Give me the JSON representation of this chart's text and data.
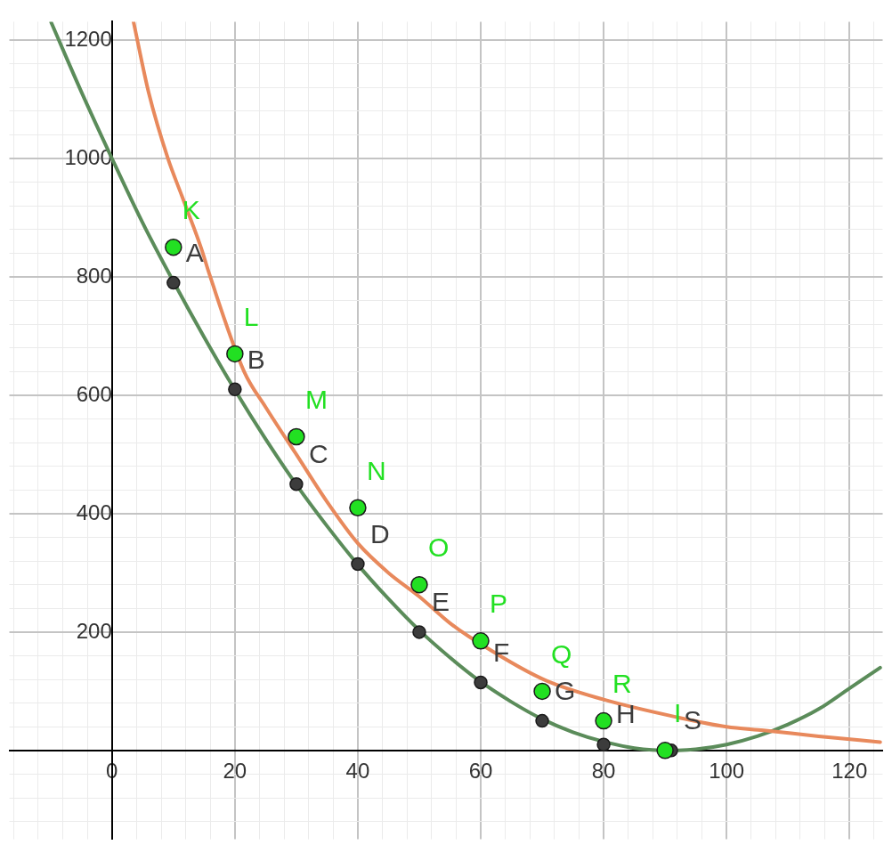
{
  "chart_data": {
    "type": "scatter",
    "marker": "circle",
    "grid": true,
    "xlim": [
      -16.7,
      125.4
    ],
    "ylim": [
      -150,
      1231
    ],
    "xticks": [
      {
        "value": -16,
        "label": null
      },
      {
        "value": -12,
        "label": null
      },
      {
        "value": -8,
        "label": null
      },
      {
        "value": -4,
        "label": null
      },
      {
        "value": 0,
        "label": "0"
      },
      {
        "value": 4,
        "label": null
      },
      {
        "value": 8,
        "label": null
      },
      {
        "value": 12,
        "label": null
      },
      {
        "value": 16,
        "label": null
      },
      20,
      {
        "value": 24,
        "label": null
      },
      {
        "value": 28,
        "label": null
      },
      {
        "value": 32,
        "label": null
      },
      {
        "value": 36,
        "label": null
      },
      40,
      {
        "value": 44,
        "label": null
      },
      {
        "value": 48,
        "label": null
      },
      {
        "value": 52,
        "label": null
      },
      {
        "value": 56,
        "label": null
      },
      60,
      {
        "value": 64,
        "label": null
      },
      {
        "value": 68,
        "label": null
      },
      {
        "value": 72,
        "label": null
      },
      {
        "value": 76,
        "label": null
      },
      80,
      {
        "value": 84,
        "label": null
      },
      {
        "value": 88,
        "label": null
      },
      {
        "value": 92,
        "label": null
      },
      {
        "value": 96,
        "label": null
      },
      100,
      {
        "value": 104,
        "label": null
      },
      {
        "value": 108,
        "label": null
      },
      {
        "value": 112,
        "label": null
      },
      {
        "value": 116,
        "label": null
      },
      120,
      {
        "value": 124,
        "label": null
      }
    ],
    "yticks": [
      {
        "value": -120,
        "label": null
      },
      {
        "value": -80,
        "label": null
      },
      {
        "value": -40,
        "label": null
      },
      {
        "value": 0,
        "label": null
      },
      {
        "value": 40,
        "label": null
      },
      {
        "value": 80,
        "label": null
      },
      {
        "value": 120,
        "label": null
      },
      {
        "value": 160,
        "label": null
      },
      200,
      {
        "value": 240,
        "label": null
      },
      {
        "value": 280,
        "label": null
      },
      {
        "value": 320,
        "label": null
      },
      {
        "value": 360,
        "label": null
      },
      400,
      {
        "value": 440,
        "label": null
      },
      {
        "value": 480,
        "label": null
      },
      {
        "value": 520,
        "label": null
      },
      {
        "value": 560,
        "label": null
      },
      600,
      {
        "value": 640,
        "label": null
      },
      {
        "value": 680,
        "label": null
      },
      {
        "value": 720,
        "label": null
      },
      {
        "value": 760,
        "label": null
      },
      800,
      {
        "value": 840,
        "label": null
      },
      {
        "value": 880,
        "label": null
      },
      {
        "value": 920,
        "label": null
      },
      {
        "value": 960,
        "label": null
      },
      1000,
      {
        "value": 1040,
        "label": null
      },
      {
        "value": 1080,
        "label": null
      },
      {
        "value": 1120,
        "label": null
      },
      {
        "value": 1160,
        "label": null
      },
      1200
    ],
    "series": [
      {
        "type": "line",
        "marker": "none",
        "color": "#5b8c5a",
        "x": [
          -9.9,
          -5,
          0,
          5,
          10,
          15,
          20,
          25,
          30,
          35,
          40,
          45,
          50,
          55,
          60,
          65,
          70,
          75,
          80,
          85,
          91,
          95,
          100,
          105,
          110,
          115,
          120,
          125
        ],
        "values": [
          1230,
          1113,
          1000,
          891,
          792,
          698,
          609,
          526,
          449,
          379,
          314,
          256,
          203,
          157,
          116,
          82,
          53,
          31,
          15,
          4,
          0,
          2,
          10,
          24,
          44,
          70,
          105,
          140
        ]
      },
      {
        "type": "line",
        "marker": "none",
        "color": "#e8895c",
        "x": [
          3.5,
          6,
          9.1,
          11.4,
          14.5,
          15.9,
          21.5,
          25,
          30,
          35,
          40,
          45,
          50,
          55,
          58,
          70,
          80,
          92,
          100,
          106,
          115,
          125
        ],
        "values": [
          1231,
          1110,
          1000,
          936,
          849,
          803,
          640,
          580,
          500,
          420,
          350,
          300,
          260,
          215,
          193,
          121,
          86,
          56,
          40,
          34,
          24,
          14
        ]
      },
      {
        "type": "scatter",
        "color": "#3c3c3c",
        "x": [
          10,
          20,
          30,
          40,
          50,
          60,
          70,
          80,
          91
        ],
        "values": [
          790,
          610,
          450,
          315,
          200,
          115,
          50,
          10,
          0
        ],
        "value_labels": [
          "A",
          "B",
          "C",
          "D",
          "E",
          "F",
          "G",
          "H",
          "S"
        ]
      },
      {
        "type": "scatter",
        "color": "#22e022",
        "x": [
          10,
          20,
          30,
          40,
          50,
          60,
          70,
          80,
          90
        ],
        "values": [
          850,
          670,
          530,
          410,
          280,
          185,
          100,
          50,
          0
        ],
        "value_labels": [
          "K",
          "L",
          "M",
          "N",
          "O",
          "P",
          "Q",
          "R",
          "I"
        ]
      }
    ]
  }
}
